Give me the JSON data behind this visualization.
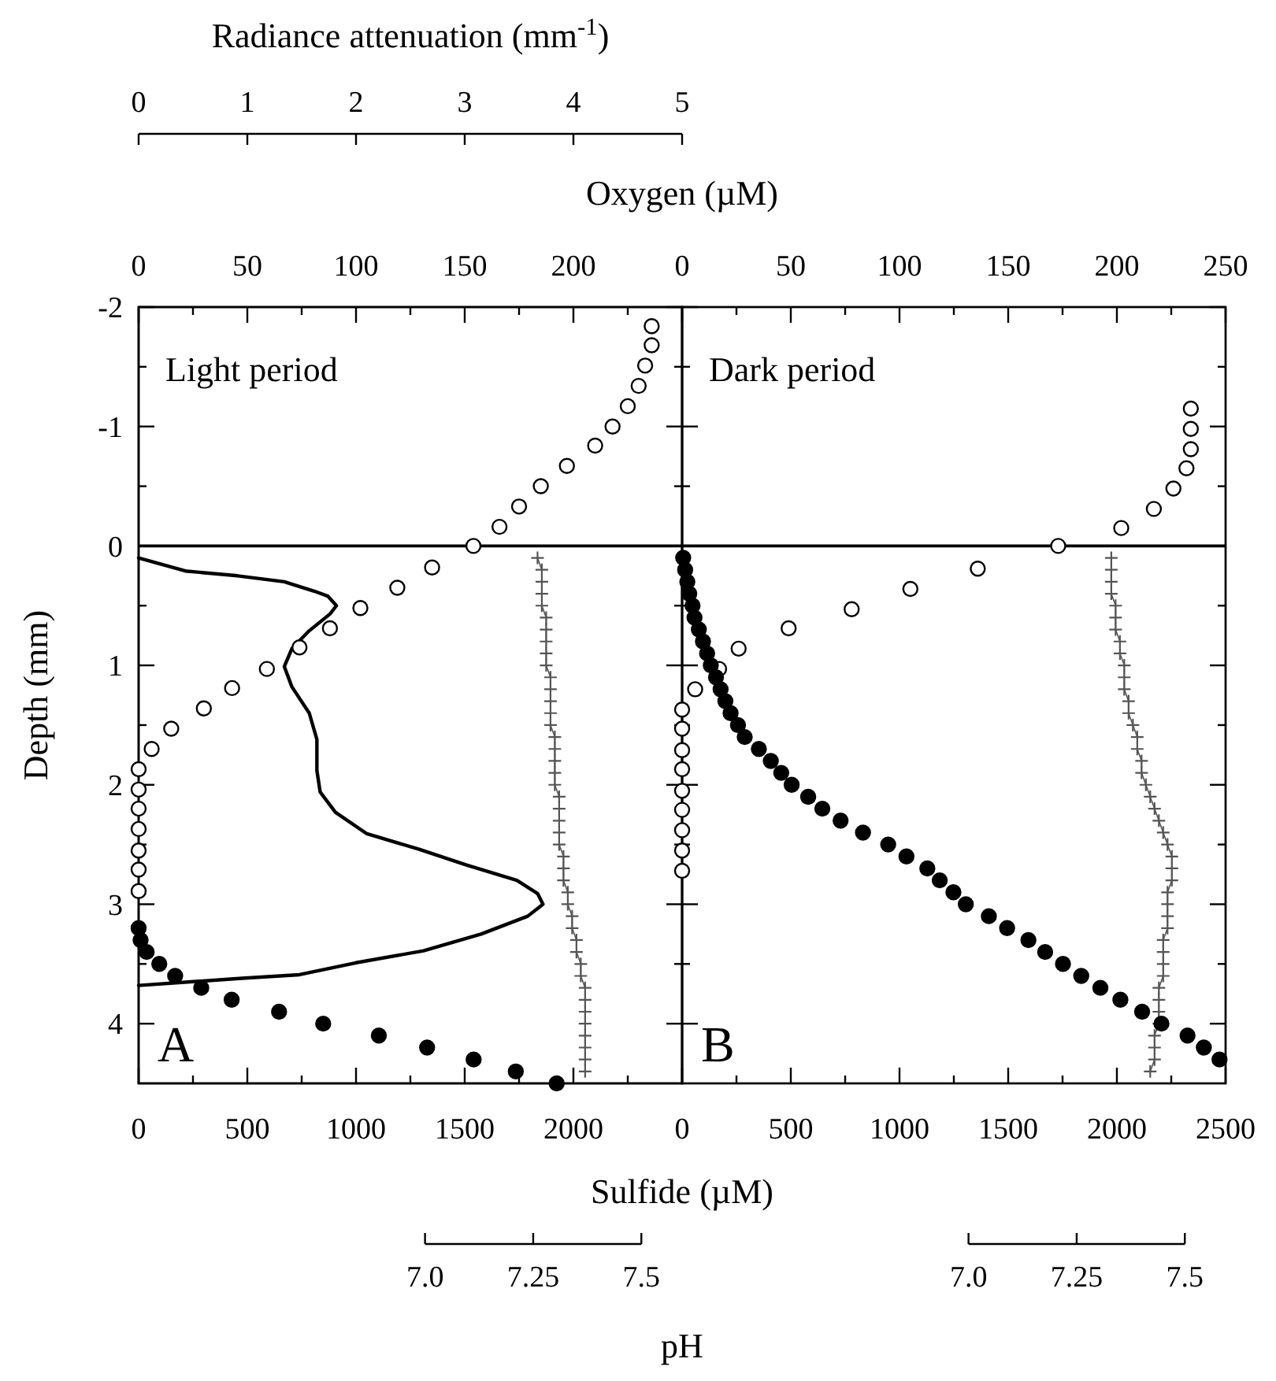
{
  "chart_data": [
    {
      "type": "line",
      "xlabel": "Radiance attenuation (mm$^{-1}$)",
      "tick_labels": "x",
      "xlim": [
        0,
        5
      ],
      "xticks": [
        0,
        1,
        2,
        3,
        4,
        5
      ],
      "ylim": [
        4.5,
        -2
      ],
      "series": [
        {
          "color": "#000000",
          "marker": "none",
          "x": [
            0,
            0.43,
            0.91,
            1.34,
            1.62,
            1.74,
            1.82,
            1.76,
            1.57,
            1.41,
            1.34,
            1.41,
            1.57,
            1.64,
            1.64,
            1.67,
            1.81,
            2.1,
            2.58,
            3.01,
            3.48,
            3.67,
            3.72,
            3.58,
            3.15,
            2.62,
            2.0,
            1.48,
            0.95,
            0
          ],
          "values": [
            0.1,
            0.21,
            0.25,
            0.3,
            0.38,
            0.42,
            0.5,
            0.57,
            0.71,
            0.86,
            1.01,
            1.18,
            1.4,
            1.62,
            1.88,
            2.06,
            2.23,
            2.41,
            2.54,
            2.67,
            2.8,
            2.91,
            3.0,
            3.1,
            3.25,
            3.39,
            3.49,
            3.59,
            3.62,
            3.68
          ]
        }
      ]
    },
    {
      "type": "scatter",
      "xlabel": "Sulfide (µM)",
      "x2label": "Oxygen (µM)",
      "ylabel": "Depth (mm)",
      "annotations": [
        "Light period",
        "A"
      ],
      "xlim": [
        0,
        2500
      ],
      "xticks": [
        0,
        {
          "value": 250,
          "label": null
        },
        500,
        {
          "value": 750,
          "label": null
        },
        1000,
        {
          "value": 1250,
          "label": null
        },
        1500,
        {
          "value": 1750,
          "label": null
        },
        2000,
        {
          "value": 2250,
          "label": null
        }
      ],
      "x2lim": [
        0,
        250
      ],
      "x2ticks": [
        0,
        {
          "value": 25,
          "label": null
        },
        50,
        {
          "value": 75,
          "label": null
        },
        100,
        {
          "value": 125,
          "label": null
        },
        150,
        {
          "value": 175,
          "label": null
        },
        200,
        {
          "value": 225,
          "label": null
        }
      ],
      "ylim": [
        4.5,
        -2
      ],
      "yticks": [
        -2,
        {
          "value": -1.5,
          "label": null
        },
        -1,
        {
          "value": -0.5,
          "label": null
        },
        0,
        {
          "value": 0.5,
          "label": null
        },
        1,
        {
          "value": 1.5,
          "label": null
        },
        2,
        {
          "value": 2.5,
          "label": null
        },
        3,
        {
          "value": 3.5,
          "label": null
        },
        4
      ],
      "ref_lines": [
        {
          "axis": "y",
          "value": 0,
          "color": "#000000"
        }
      ],
      "series": [
        {
          "axis": "x2",
          "color": "#000000",
          "marker": "circle",
          "x": [
            236,
            236,
            233,
            230,
            225,
            218,
            210,
            197,
            185,
            175,
            166,
            154,
            135,
            119,
            102,
            88,
            74,
            59,
            43,
            30,
            15,
            6,
            0,
            0,
            0,
            0,
            0,
            0,
            0
          ],
          "values": [
            -1.84,
            -1.68,
            -1.51,
            -1.34,
            -1.17,
            -1.0,
            -0.84,
            -0.67,
            -0.5,
            -0.33,
            -0.16,
            0,
            0.18,
            0.35,
            0.52,
            0.69,
            0.85,
            1.03,
            1.19,
            1.36,
            1.53,
            1.7,
            1.87,
            2.04,
            2.2,
            2.37,
            2.55,
            2.71,
            2.89
          ]
        },
        {
          "color": "#000000",
          "marker": "circle",
          "x": [
            0,
            9,
            37,
            95,
            168,
            288,
            428,
            646,
            849,
            1105,
            1327,
            1541,
            1735,
            1923
          ],
          "values": [
            3.2,
            3.3,
            3.4,
            3.5,
            3.6,
            3.7,
            3.8,
            3.9,
            4.0,
            4.1,
            4.2,
            4.3,
            4.4,
            4.5
          ]
        }
      ]
    },
    {
      "type": "scatter",
      "annotations": [
        "Dark period",
        "B"
      ],
      "tick_labels": "x",
      "xlim": [
        0,
        2500
      ],
      "xticks": [
        0,
        {
          "value": 250,
          "label": null
        },
        500,
        {
          "value": 750,
          "label": null
        },
        1000,
        {
          "value": 1250,
          "label": null
        },
        1500,
        {
          "value": 1750,
          "label": null
        },
        2000,
        {
          "value": 2250,
          "label": null
        },
        2500
      ],
      "x2lim": [
        0,
        250
      ],
      "x2ticks": [
        0,
        {
          "value": 25,
          "label": null
        },
        50,
        {
          "value": 75,
          "label": null
        },
        100,
        {
          "value": 125,
          "label": null
        },
        150,
        {
          "value": 175,
          "label": null
        },
        200,
        {
          "value": 225,
          "label": null
        },
        250
      ],
      "ylim": [
        4.5,
        -2
      ],
      "yticks": [
        -2,
        {
          "value": -1.5,
          "label": null
        },
        -1,
        {
          "value": -0.5,
          "label": null
        },
        0,
        {
          "value": 0.5,
          "label": null
        },
        1,
        {
          "value": 1.5,
          "label": null
        },
        2,
        {
          "value": 2.5,
          "label": null
        },
        3,
        {
          "value": 3.5,
          "label": null
        },
        4
      ],
      "ref_lines": [
        {
          "axis": "y",
          "value": 0,
          "color": "#000000"
        }
      ],
      "series": [
        {
          "axis": "x2",
          "color": "#000000",
          "marker": "circle",
          "x": [
            234,
            234,
            234,
            232,
            226,
            217,
            202,
            173,
            136,
            105,
            78,
            49,
            26,
            17,
            6,
            0,
            0,
            0,
            0,
            0,
            0,
            0,
            0,
            0
          ],
          "values": [
            -1.15,
            -0.98,
            -0.81,
            -0.65,
            -0.48,
            -0.31,
            -0.15,
            0,
            0.19,
            0.36,
            0.53,
            0.69,
            0.86,
            1.03,
            1.2,
            1.37,
            1.53,
            1.71,
            1.87,
            2.05,
            2.21,
            2.38,
            2.55,
            2.72
          ]
        },
        {
          "color": "#000000",
          "marker": "circle",
          "x": [
            5,
            14,
            24,
            33,
            48,
            57,
            77,
            96,
            115,
            132,
            156,
            177,
            199,
            223,
            257,
            288,
            353,
            408,
            456,
            504,
            580,
            645,
            729,
            832,
            948,
            1032,
            1128,
            1185,
            1248,
            1305,
            1411,
            1495,
            1593,
            1670,
            1752,
            1836,
            1924,
            2016,
            2116,
            2205,
            2325,
            2400,
            2472
          ],
          "values": [
            0.1,
            0.2,
            0.3,
            0.4,
            0.5,
            0.6,
            0.7,
            0.8,
            0.9,
            1.0,
            1.1,
            1.2,
            1.3,
            1.4,
            1.5,
            1.6,
            1.7,
            1.8,
            1.9,
            2.0,
            2.1,
            2.2,
            2.3,
            2.4,
            2.5,
            2.6,
            2.7,
            2.8,
            2.9,
            3.0,
            3.1,
            3.2,
            3.3,
            3.4,
            3.5,
            3.6,
            3.7,
            3.8,
            3.9,
            4.0,
            4.1,
            4.2,
            4.3
          ]
        }
      ]
    },
    {
      "type": "line",
      "xlabel": "pH",
      "tick_labels": "x",
      "marker": "cross",
      "xlim": [
        7,
        7.5
      ],
      "xticks": [
        {
          "value": 7,
          "label": "7.0"
        },
        7.25,
        7.5
      ],
      "ylim": [
        4.5,
        -2
      ],
      "series": [
        {
          "color": "#555555",
          "x": [
            7.26,
            7.27,
            7.27,
            7.27,
            7.27,
            7.28,
            7.28,
            7.28,
            7.28,
            7.28,
            7.29,
            7.29,
            7.29,
            7.29,
            7.29,
            7.3,
            7.3,
            7.3,
            7.3,
            7.3,
            7.31,
            7.31,
            7.31,
            7.31,
            7.31,
            7.32,
            7.32,
            7.32,
            7.33,
            7.33,
            7.34,
            7.34,
            7.35,
            7.35,
            7.36,
            7.36,
            7.37,
            7.37,
            7.37,
            7.37,
            7.37,
            7.37,
            7.37,
            7.37
          ],
          "values": [
            0.1,
            0.2,
            0.3,
            0.4,
            0.5,
            0.6,
            0.7,
            0.8,
            0.9,
            1.0,
            1.1,
            1.2,
            1.3,
            1.4,
            1.5,
            1.6,
            1.7,
            1.8,
            1.9,
            2.0,
            2.1,
            2.2,
            2.3,
            2.4,
            2.5,
            2.6,
            2.7,
            2.8,
            2.9,
            3.0,
            3.1,
            3.2,
            3.3,
            3.4,
            3.5,
            3.6,
            3.7,
            3.8,
            3.9,
            4.0,
            4.1,
            4.2,
            4.3,
            4.4
          ]
        }
      ]
    },
    {
      "type": "line",
      "tick_labels": "x",
      "marker": "cross",
      "xlim": [
        7,
        7.5
      ],
      "xticks": [
        {
          "value": 7,
          "label": "7.0"
        },
        7.25,
        7.5
      ],
      "ylim": [
        4.5,
        -2
      ],
      "series": [
        {
          "color": "#555555",
          "x": [
            7.33,
            7.33,
            7.33,
            7.33,
            7.34,
            7.34,
            7.34,
            7.35,
            7.35,
            7.36,
            7.36,
            7.36,
            7.37,
            7.37,
            7.38,
            7.39,
            7.39,
            7.4,
            7.4,
            7.41,
            7.42,
            7.43,
            7.44,
            7.45,
            7.46,
            7.47,
            7.47,
            7.47,
            7.46,
            7.46,
            7.46,
            7.46,
            7.45,
            7.45,
            7.45,
            7.45,
            7.44,
            7.44,
            7.44,
            7.44,
            7.43,
            7.43,
            7.43,
            7.42
          ],
          "values": [
            0.1,
            0.2,
            0.3,
            0.4,
            0.5,
            0.6,
            0.7,
            0.8,
            0.9,
            1.0,
            1.1,
            1.2,
            1.3,
            1.4,
            1.5,
            1.6,
            1.7,
            1.8,
            1.9,
            2.0,
            2.1,
            2.2,
            2.3,
            2.4,
            2.5,
            2.6,
            2.7,
            2.8,
            2.9,
            3.0,
            3.1,
            3.2,
            3.3,
            3.4,
            3.5,
            3.6,
            3.7,
            3.8,
            3.9,
            4.0,
            4.1,
            4.2,
            4.3,
            4.4
          ]
        }
      ]
    }
  ]
}
